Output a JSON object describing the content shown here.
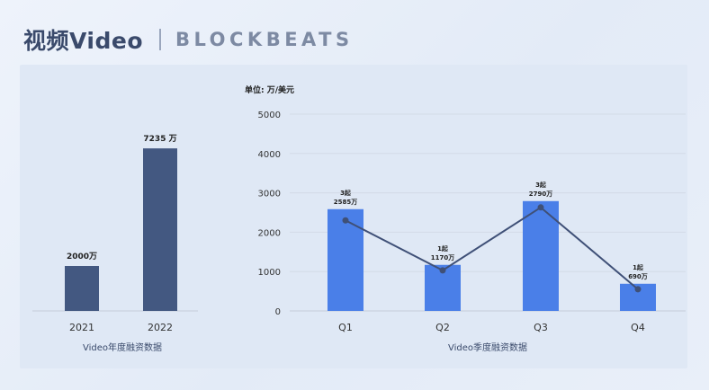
{
  "header": {
    "title": "视频Video",
    "logo_text": "BLOCKBEATS"
  },
  "colors": {
    "left_bar": "#435881",
    "right_bar": "#4a7fe8",
    "line": "#3f5077",
    "axis_text": "#333333"
  },
  "chart_data": [
    {
      "type": "bar",
      "categories": [
        "2021",
        "2022"
      ],
      "values": [
        2000,
        7235
      ],
      "data_labels": [
        "2000万",
        "7235 万"
      ],
      "xlabel": "Video年度融资数据",
      "ylim": [
        0,
        7600
      ],
      "grid": false
    },
    {
      "type": "bar",
      "categories": [
        "Q1",
        "Q2",
        "Q3",
        "Q4"
      ],
      "values": [
        2585,
        1170,
        2790,
        690
      ],
      "counts": [
        "3起",
        "1起",
        "3起",
        "1起"
      ],
      "amount_labels": [
        "2585万",
        "1170万",
        "2790万",
        "690万"
      ],
      "line_values": [
        2300,
        1030,
        2630,
        550
      ],
      "unit_label": "单位: 万/美元",
      "xlabel": "Video季度融资数据",
      "yticks": [
        0,
        1000,
        2000,
        3000,
        4000,
        5000
      ],
      "ylim": [
        0,
        5000
      ],
      "grid": true
    }
  ]
}
